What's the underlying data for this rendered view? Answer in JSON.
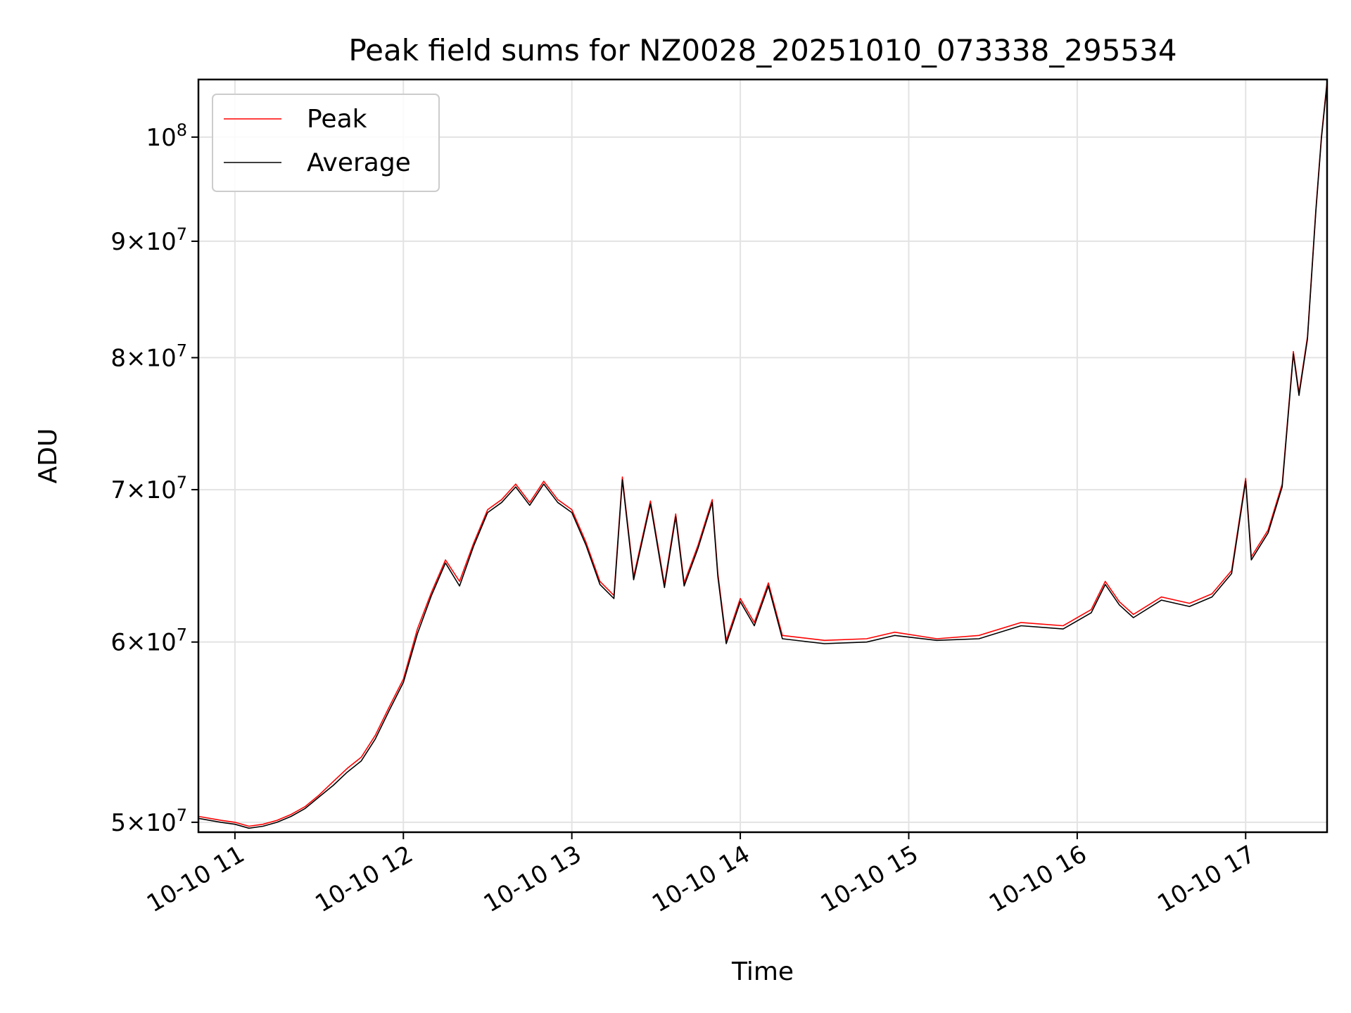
{
  "chart_data": {
    "type": "line",
    "title": "Peak field sums for NZ0028_20251010_073338_295534",
    "xlabel": "Time",
    "ylabel": "ADU",
    "y_scale": "log",
    "grid": true,
    "legend_position": "top-left",
    "xlim": [
      "2025-10-10 10:47",
      "2025-10-10 17:29"
    ],
    "ylim": [
      49500000,
      106000000
    ],
    "x_ticks": [
      {
        "value": "2025-10-10 11:00",
        "label": "10-10 11"
      },
      {
        "value": "2025-10-10 12:00",
        "label": "10-10 12"
      },
      {
        "value": "2025-10-10 13:00",
        "label": "10-10 13"
      },
      {
        "value": "2025-10-10 14:00",
        "label": "10-10 14"
      },
      {
        "value": "2025-10-10 15:00",
        "label": "10-10 15"
      },
      {
        "value": "2025-10-10 16:00",
        "label": "10-10 16"
      },
      {
        "value": "2025-10-10 17:00",
        "label": "10-10 17"
      }
    ],
    "y_ticks": [
      {
        "value": 50000000,
        "base": "5",
        "exp": "7"
      },
      {
        "value": 60000000,
        "base": "6",
        "exp": "7"
      },
      {
        "value": 70000000,
        "base": "7",
        "exp": "7"
      },
      {
        "value": 80000000,
        "base": "8",
        "exp": "7"
      },
      {
        "value": 90000000,
        "base": "9",
        "exp": "7"
      },
      {
        "value": 100000000,
        "base": "",
        "exp": "8"
      }
    ],
    "series": [
      {
        "name": "Peak",
        "color": "#ff0000",
        "points": [
          [
            "2025-10-10 10:47",
            50300000
          ],
          [
            "2025-10-10 10:55",
            50100000
          ],
          [
            "2025-10-10 11:00",
            50000000
          ],
          [
            "2025-10-10 11:05",
            49800000
          ],
          [
            "2025-10-10 11:10",
            49900000
          ],
          [
            "2025-10-10 11:15",
            50100000
          ],
          [
            "2025-10-10 11:20",
            50400000
          ],
          [
            "2025-10-10 11:25",
            50800000
          ],
          [
            "2025-10-10 11:30",
            51400000
          ],
          [
            "2025-10-10 11:35",
            52100000
          ],
          [
            "2025-10-10 11:40",
            52800000
          ],
          [
            "2025-10-10 11:45",
            53400000
          ],
          [
            "2025-10-10 11:50",
            54600000
          ],
          [
            "2025-10-10 11:55",
            56200000
          ],
          [
            "2025-10-10 12:00",
            57800000
          ],
          [
            "2025-10-10 12:05",
            60800000
          ],
          [
            "2025-10-10 12:10",
            63100000
          ],
          [
            "2025-10-10 12:15",
            65200000
          ],
          [
            "2025-10-10 12:20",
            63800000
          ],
          [
            "2025-10-10 12:25",
            66300000
          ],
          [
            "2025-10-10 12:30",
            68600000
          ],
          [
            "2025-10-10 12:35",
            69300000
          ],
          [
            "2025-10-10 12:40",
            70400000
          ],
          [
            "2025-10-10 12:45",
            69100000
          ],
          [
            "2025-10-10 12:50",
            70600000
          ],
          [
            "2025-10-10 12:55",
            69300000
          ],
          [
            "2025-10-10 13:00",
            68600000
          ],
          [
            "2025-10-10 13:05",
            66400000
          ],
          [
            "2025-10-10 13:10",
            63800000
          ],
          [
            "2025-10-10 13:15",
            62900000
          ],
          [
            "2025-10-10 13:18",
            70900000
          ],
          [
            "2025-10-10 13:22",
            64100000
          ],
          [
            "2025-10-10 13:28",
            69200000
          ],
          [
            "2025-10-10 13:33",
            63600000
          ],
          [
            "2025-10-10 13:37",
            68300000
          ],
          [
            "2025-10-10 13:40",
            63700000
          ],
          [
            "2025-10-10 13:45",
            66200000
          ],
          [
            "2025-10-10 13:50",
            69300000
          ],
          [
            "2025-10-10 13:52",
            64300000
          ],
          [
            "2025-10-10 13:55",
            60100000
          ],
          [
            "2025-10-10 14:00",
            62700000
          ],
          [
            "2025-10-10 14:05",
            61200000
          ],
          [
            "2025-10-10 14:10",
            63700000
          ],
          [
            "2025-10-10 14:15",
            60400000
          ],
          [
            "2025-10-10 14:30",
            60100000
          ],
          [
            "2025-10-10 14:45",
            60200000
          ],
          [
            "2025-10-10 14:55",
            60600000
          ],
          [
            "2025-10-10 15:10",
            60200000
          ],
          [
            "2025-10-10 15:25",
            60400000
          ],
          [
            "2025-10-10 15:40",
            61200000
          ],
          [
            "2025-10-10 15:55",
            61000000
          ],
          [
            "2025-10-10 16:05",
            62000000
          ],
          [
            "2025-10-10 16:10",
            63800000
          ],
          [
            "2025-10-10 16:15",
            62500000
          ],
          [
            "2025-10-10 16:20",
            61700000
          ],
          [
            "2025-10-10 16:30",
            62800000
          ],
          [
            "2025-10-10 16:40",
            62400000
          ],
          [
            "2025-10-10 16:48",
            63000000
          ],
          [
            "2025-10-10 16:55",
            64500000
          ],
          [
            "2025-10-10 17:00",
            70800000
          ],
          [
            "2025-10-10 17:02",
            65400000
          ],
          [
            "2025-10-10 17:08",
            67200000
          ],
          [
            "2025-10-10 17:13",
            70400000
          ],
          [
            "2025-10-10 17:17",
            80500000
          ],
          [
            "2025-10-10 17:19",
            77200000
          ],
          [
            "2025-10-10 17:22",
            81700000
          ],
          [
            "2025-10-10 17:25",
            92900000
          ],
          [
            "2025-10-10 17:27",
            100100000
          ],
          [
            "2025-10-10 17:29",
            105800000
          ]
        ]
      },
      {
        "name": "Average",
        "color": "#000000",
        "points": [
          [
            "2025-10-10 10:47",
            50200000
          ],
          [
            "2025-10-10 10:55",
            50000000
          ],
          [
            "2025-10-10 11:00",
            49900000
          ],
          [
            "2025-10-10 11:05",
            49700000
          ],
          [
            "2025-10-10 11:10",
            49800000
          ],
          [
            "2025-10-10 11:15",
            50000000
          ],
          [
            "2025-10-10 11:20",
            50300000
          ],
          [
            "2025-10-10 11:25",
            50700000
          ],
          [
            "2025-10-10 11:30",
            51300000
          ],
          [
            "2025-10-10 11:35",
            51900000
          ],
          [
            "2025-10-10 11:40",
            52600000
          ],
          [
            "2025-10-10 11:45",
            53200000
          ],
          [
            "2025-10-10 11:50",
            54400000
          ],
          [
            "2025-10-10 11:55",
            56000000
          ],
          [
            "2025-10-10 12:00",
            57600000
          ],
          [
            "2025-10-10 12:05",
            60500000
          ],
          [
            "2025-10-10 12:10",
            62900000
          ],
          [
            "2025-10-10 12:15",
            65000000
          ],
          [
            "2025-10-10 12:20",
            63500000
          ],
          [
            "2025-10-10 12:25",
            66100000
          ],
          [
            "2025-10-10 12:30",
            68400000
          ],
          [
            "2025-10-10 12:35",
            69100000
          ],
          [
            "2025-10-10 12:40",
            70200000
          ],
          [
            "2025-10-10 12:45",
            68900000
          ],
          [
            "2025-10-10 12:50",
            70400000
          ],
          [
            "2025-10-10 12:55",
            69100000
          ],
          [
            "2025-10-10 13:00",
            68400000
          ],
          [
            "2025-10-10 13:05",
            66200000
          ],
          [
            "2025-10-10 13:10",
            63600000
          ],
          [
            "2025-10-10 13:15",
            62700000
          ],
          [
            "2025-10-10 13:18",
            70700000
          ],
          [
            "2025-10-10 13:22",
            63900000
          ],
          [
            "2025-10-10 13:28",
            69000000
          ],
          [
            "2025-10-10 13:33",
            63400000
          ],
          [
            "2025-10-10 13:37",
            68100000
          ],
          [
            "2025-10-10 13:40",
            63500000
          ],
          [
            "2025-10-10 13:45",
            66000000
          ],
          [
            "2025-10-10 13:50",
            69100000
          ],
          [
            "2025-10-10 13:52",
            64100000
          ],
          [
            "2025-10-10 13:55",
            59900000
          ],
          [
            "2025-10-10 14:00",
            62500000
          ],
          [
            "2025-10-10 14:05",
            61000000
          ],
          [
            "2025-10-10 14:10",
            63500000
          ],
          [
            "2025-10-10 14:15",
            60200000
          ],
          [
            "2025-10-10 14:30",
            59900000
          ],
          [
            "2025-10-10 14:45",
            60000000
          ],
          [
            "2025-10-10 14:55",
            60400000
          ],
          [
            "2025-10-10 15:10",
            60100000
          ],
          [
            "2025-10-10 15:25",
            60200000
          ],
          [
            "2025-10-10 15:40",
            61000000
          ],
          [
            "2025-10-10 15:55",
            60800000
          ],
          [
            "2025-10-10 16:05",
            61800000
          ],
          [
            "2025-10-10 16:10",
            63600000
          ],
          [
            "2025-10-10 16:15",
            62300000
          ],
          [
            "2025-10-10 16:20",
            61500000
          ],
          [
            "2025-10-10 16:30",
            62600000
          ],
          [
            "2025-10-10 16:40",
            62200000
          ],
          [
            "2025-10-10 16:48",
            62800000
          ],
          [
            "2025-10-10 16:55",
            64300000
          ],
          [
            "2025-10-10 17:00",
            70600000
          ],
          [
            "2025-10-10 17:02",
            65200000
          ],
          [
            "2025-10-10 17:08",
            67000000
          ],
          [
            "2025-10-10 17:13",
            70200000
          ],
          [
            "2025-10-10 17:17",
            80300000
          ],
          [
            "2025-10-10 17:19",
            77000000
          ],
          [
            "2025-10-10 17:22",
            81500000
          ],
          [
            "2025-10-10 17:25",
            92700000
          ],
          [
            "2025-10-10 17:27",
            99900000
          ],
          [
            "2025-10-10 17:29",
            105600000
          ]
        ]
      }
    ]
  }
}
